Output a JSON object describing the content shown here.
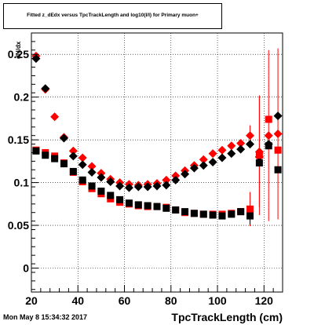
{
  "title": "Fitted z_dEdx versus TpcTrackLength and log10(I/I) for Primary muon+",
  "timestamp": "Mon May  8 15:34:32 2017",
  "chart_data": {
    "type": "scatter",
    "xlabel": "TpcTrackLength (cm)",
    "ylabel": "dN/dx",
    "xlim": [
      20,
      128
    ],
    "ylim": [
      -0.028,
      0.275
    ],
    "xticks": [
      20,
      40,
      60,
      80,
      100,
      120
    ],
    "yticks": [
      0,
      0.05,
      0.1,
      0.15,
      0.2,
      0.25
    ],
    "grid": true,
    "series": [
      {
        "marker": "diamond",
        "color": "#ff0000",
        "points": [
          {
            "x": 22,
            "y": 0.248
          },
          {
            "x": 26,
            "y": 0.209
          },
          {
            "x": 30,
            "y": 0.177
          },
          {
            "x": 34,
            "y": 0.153
          },
          {
            "x": 38,
            "y": 0.137
          },
          {
            "x": 42,
            "y": 0.129
          },
          {
            "x": 46,
            "y": 0.119
          },
          {
            "x": 50,
            "y": 0.111
          },
          {
            "x": 54,
            "y": 0.104
          },
          {
            "x": 58,
            "y": 0.1
          },
          {
            "x": 62,
            "y": 0.098
          },
          {
            "x": 66,
            "y": 0.097
          },
          {
            "x": 70,
            "y": 0.098
          },
          {
            "x": 74,
            "y": 0.099
          },
          {
            "x": 78,
            "y": 0.103
          },
          {
            "x": 82,
            "y": 0.108
          },
          {
            "x": 86,
            "y": 0.114
          },
          {
            "x": 90,
            "y": 0.12
          },
          {
            "x": 94,
            "y": 0.127
          },
          {
            "x": 98,
            "y": 0.134
          },
          {
            "x": 102,
            "y": 0.138
          },
          {
            "x": 106,
            "y": 0.143
          },
          {
            "x": 110,
            "y": 0.146
          },
          {
            "x": 114,
            "y": 0.155,
            "err": 0.012
          },
          {
            "x": 118,
            "y": 0.136,
            "err": 0.065
          },
          {
            "x": 122,
            "y": 0.155,
            "err": 0.1
          },
          {
            "x": 126,
            "y": 0.157,
            "err": 0.1
          }
        ]
      },
      {
        "marker": "diamond",
        "color": "#000000",
        "points": [
          {
            "x": 22,
            "y": 0.245
          },
          {
            "x": 26,
            "y": 0.21
          },
          {
            "x": 34,
            "y": 0.152
          },
          {
            "x": 38,
            "y": 0.131
          },
          {
            "x": 42,
            "y": 0.121
          },
          {
            "x": 46,
            "y": 0.112
          },
          {
            "x": 50,
            "y": 0.106
          },
          {
            "x": 54,
            "y": 0.101
          },
          {
            "x": 58,
            "y": 0.096
          },
          {
            "x": 62,
            "y": 0.094
          },
          {
            "x": 66,
            "y": 0.095
          },
          {
            "x": 70,
            "y": 0.095
          },
          {
            "x": 74,
            "y": 0.096
          },
          {
            "x": 78,
            "y": 0.097
          },
          {
            "x": 82,
            "y": 0.103
          },
          {
            "x": 86,
            "y": 0.11
          },
          {
            "x": 90,
            "y": 0.117
          },
          {
            "x": 94,
            "y": 0.12
          },
          {
            "x": 98,
            "y": 0.124
          },
          {
            "x": 102,
            "y": 0.129
          },
          {
            "x": 106,
            "y": 0.134
          },
          {
            "x": 110,
            "y": 0.139
          },
          {
            "x": 114,
            "y": 0.145
          },
          {
            "x": 118,
            "y": 0.13
          },
          {
            "x": 122,
            "y": 0.145
          },
          {
            "x": 126,
            "y": 0.178
          }
        ]
      },
      {
        "marker": "square",
        "color": "#ff0000",
        "points": [
          {
            "x": 22,
            "y": 0.138
          },
          {
            "x": 26,
            "y": 0.135
          },
          {
            "x": 30,
            "y": 0.131
          },
          {
            "x": 34,
            "y": 0.123
          },
          {
            "x": 38,
            "y": 0.112
          },
          {
            "x": 42,
            "y": 0.101
          },
          {
            "x": 46,
            "y": 0.093
          },
          {
            "x": 50,
            "y": 0.087
          },
          {
            "x": 54,
            "y": 0.081
          },
          {
            "x": 58,
            "y": 0.077
          },
          {
            "x": 62,
            "y": 0.075
          },
          {
            "x": 66,
            "y": 0.073
          },
          {
            "x": 70,
            "y": 0.072
          },
          {
            "x": 74,
            "y": 0.072
          },
          {
            "x": 78,
            "y": 0.071
          },
          {
            "x": 82,
            "y": 0.068
          },
          {
            "x": 86,
            "y": 0.065
          },
          {
            "x": 90,
            "y": 0.064
          },
          {
            "x": 94,
            "y": 0.063
          },
          {
            "x": 98,
            "y": 0.063
          },
          {
            "x": 102,
            "y": 0.063
          },
          {
            "x": 106,
            "y": 0.064
          },
          {
            "x": 110,
            "y": 0.066
          },
          {
            "x": 114,
            "y": 0.069,
            "err": 0.02
          },
          {
            "x": 118,
            "y": 0.132,
            "err": 0.07
          },
          {
            "x": 122,
            "y": 0.174
          },
          {
            "x": 126,
            "y": 0.138
          }
        ]
      },
      {
        "marker": "square",
        "color": "#000000",
        "points": [
          {
            "x": 22,
            "y": 0.137
          },
          {
            "x": 26,
            "y": 0.132
          },
          {
            "x": 30,
            "y": 0.128
          },
          {
            "x": 34,
            "y": 0.122
          },
          {
            "x": 38,
            "y": 0.113
          },
          {
            "x": 42,
            "y": 0.103
          },
          {
            "x": 46,
            "y": 0.096
          },
          {
            "x": 50,
            "y": 0.09
          },
          {
            "x": 54,
            "y": 0.085
          },
          {
            "x": 58,
            "y": 0.08
          },
          {
            "x": 62,
            "y": 0.076
          },
          {
            "x": 66,
            "y": 0.074
          },
          {
            "x": 70,
            "y": 0.073
          },
          {
            "x": 74,
            "y": 0.072
          },
          {
            "x": 78,
            "y": 0.07
          },
          {
            "x": 82,
            "y": 0.068
          },
          {
            "x": 86,
            "y": 0.066
          },
          {
            "x": 90,
            "y": 0.064
          },
          {
            "x": 94,
            "y": 0.063
          },
          {
            "x": 98,
            "y": 0.062
          },
          {
            "x": 102,
            "y": 0.061
          },
          {
            "x": 106,
            "y": 0.063
          },
          {
            "x": 110,
            "y": 0.066
          },
          {
            "x": 114,
            "y": 0.061,
            "err": 0.01
          },
          {
            "x": 118,
            "y": 0.123
          },
          {
            "x": 122,
            "y": 0.143
          },
          {
            "x": 126,
            "y": 0.115
          }
        ]
      }
    ]
  }
}
